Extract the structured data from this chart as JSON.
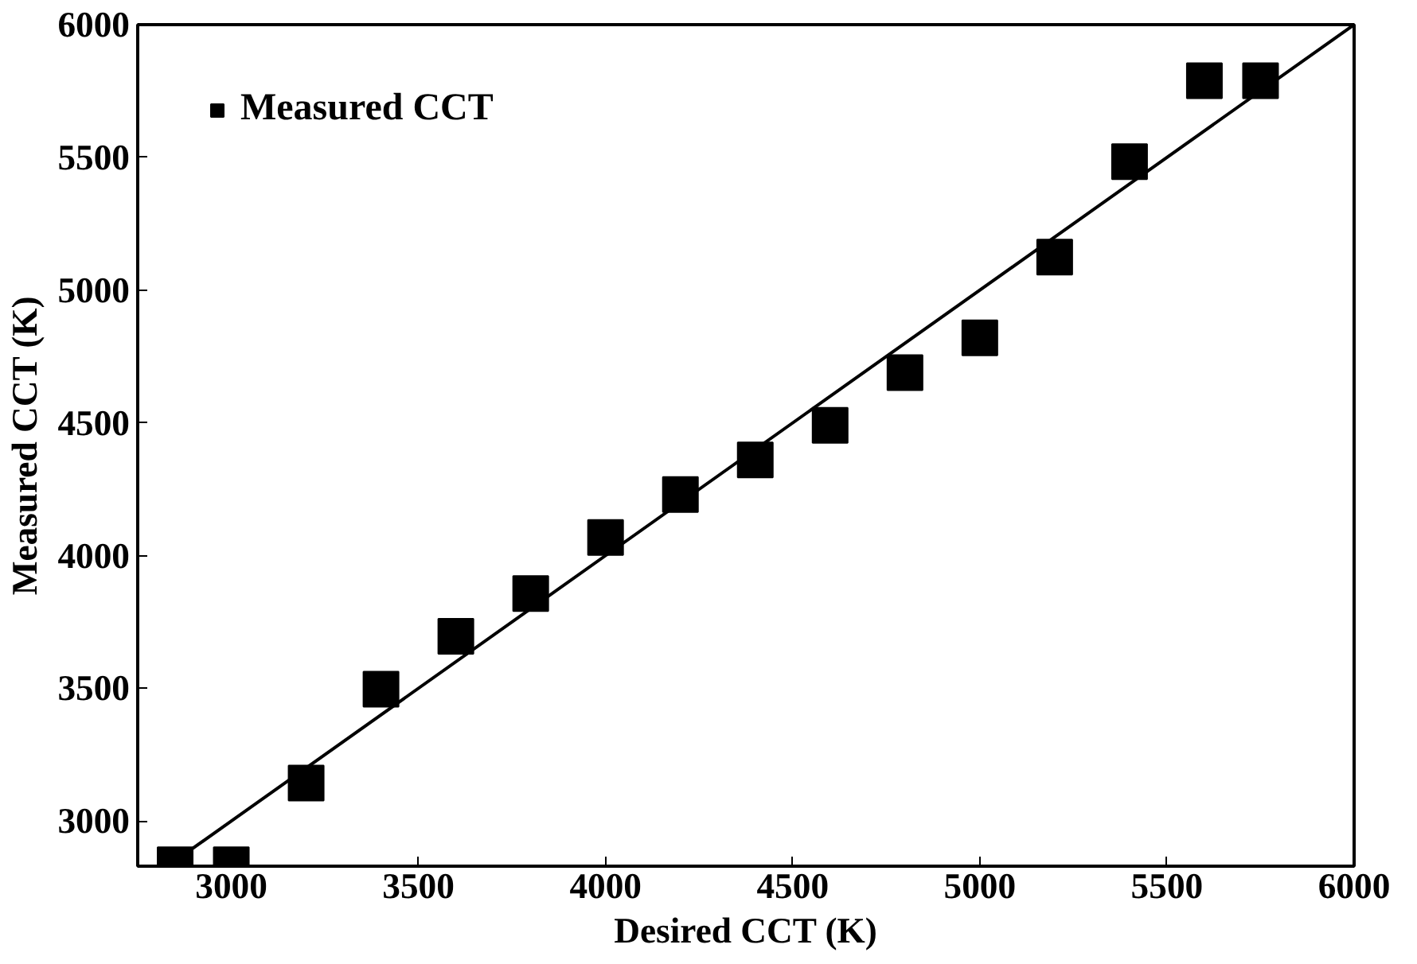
{
  "chart_data": {
    "type": "scatter",
    "xlabel": "Desired CCT (K)",
    "ylabel": "Measured CCT (K)",
    "xlim": [
      2750,
      6000
    ],
    "ylim": [
      2830,
      6000
    ],
    "xticks": [
      3000,
      3500,
      4000,
      4500,
      5000,
      5500,
      6000
    ],
    "yticks": [
      3000,
      3500,
      4000,
      4500,
      5000,
      5500,
      6000
    ],
    "grid": false,
    "legend": "top left",
    "series": [
      {
        "name": "Measured CCT",
        "color": "#000000",
        "marker": "square",
        "x": [
          2850,
          3000,
          3200,
          3400,
          3600,
          3800,
          4000,
          4200,
          4400,
          4600,
          4800,
          5000,
          5200,
          5400,
          5600,
          5750
        ],
        "values": [
          2835,
          2835,
          3143,
          3497,
          3696,
          3857,
          4068,
          4230,
          4360,
          4491,
          4689,
          4820,
          5124,
          5484,
          5789,
          5789
        ]
      },
      {
        "type": "line",
        "color": "#000000",
        "line_style": "solid",
        "x": [
          2830,
          6000
        ],
        "values": [
          2830,
          6000
        ]
      }
    ]
  }
}
